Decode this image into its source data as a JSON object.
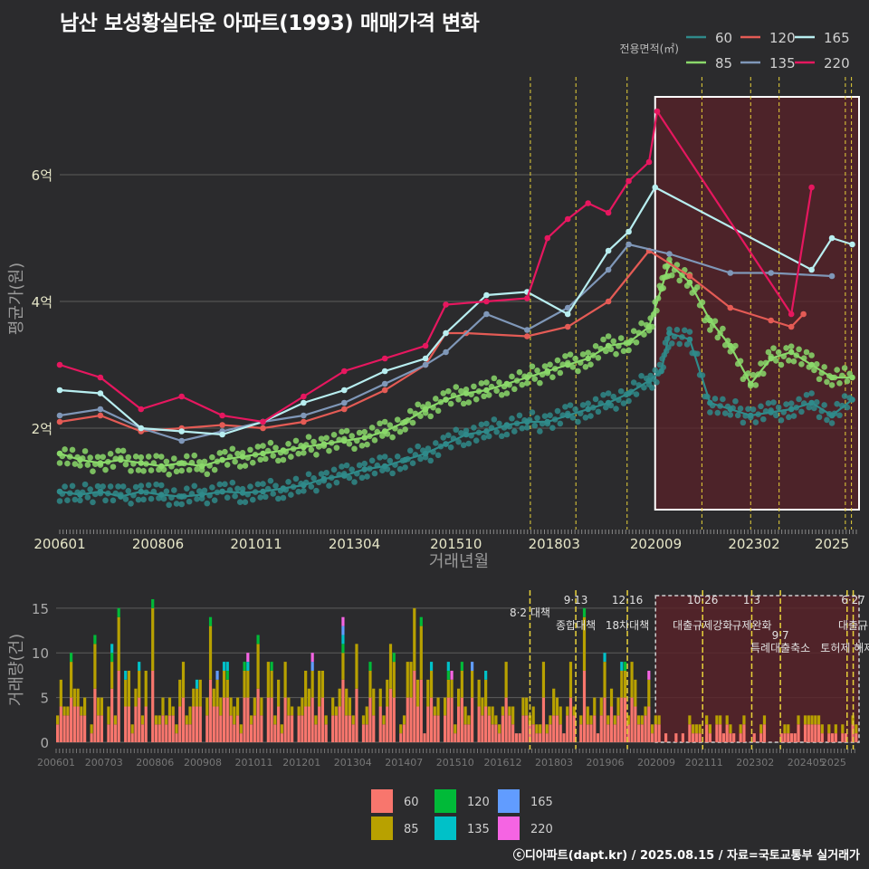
{
  "title": "남산 보성황실타운 아파트(1993) 매매가격 변화",
  "credit": "ⓒ디아파트(dapt.kr) / 2025.08.15 / 자료=국토교통부 실거래가",
  "colors": {
    "background": "#2b2b2d",
    "grid": "#5a5a5a",
    "highlight_fill": "#5a2228",
    "highlight_border": "#ffffff",
    "policy_line": "#e8d23a"
  },
  "chart_data": [
    {
      "type": "line",
      "title": "남산 보성황실타운 아파트(1993) 매매가격 변화",
      "xlabel": "거래년월",
      "ylabel": "평균가(원)",
      "x_ticks": [
        "200601",
        "200806",
        "201011",
        "201304",
        "201510",
        "201803",
        "202009",
        "202302",
        "2025"
      ],
      "y_ticks": [
        {
          "v": 2,
          "label": "2억"
        },
        {
          "v": 4,
          "label": "4억"
        },
        {
          "v": 6,
          "label": "6억"
        }
      ],
      "ylim": [
        0.5,
        7.4
      ],
      "xlim": [
        2006.0,
        2025.6
      ],
      "legend_title": "전용면적(㎡)",
      "legend_position": "top-right",
      "highlight_range": [
        2020.65,
        2025.6
      ],
      "policy_dates": [
        2017.58,
        2018.7,
        2019.96,
        2021.8,
        2023.0,
        2023.7,
        2025.33,
        2025.48
      ],
      "series": [
        {
          "name": "60",
          "color": "#2f8a8a",
          "values": [
            [
              2006.0,
              1.0
            ],
            [
              2006.5,
              0.95
            ],
            [
              2007.0,
              1.0
            ],
            [
              2007.5,
              0.92
            ],
            [
              2008.0,
              1.0
            ],
            [
              2008.5,
              0.95
            ],
            [
              2009.0,
              0.92
            ],
            [
              2009.5,
              0.95
            ],
            [
              2010.0,
              1.0
            ],
            [
              2010.5,
              0.98
            ],
            [
              2011.0,
              1.0
            ],
            [
              2011.5,
              1.05
            ],
            [
              2012.0,
              1.1
            ],
            [
              2012.5,
              1.2
            ],
            [
              2013.0,
              1.25
            ],
            [
              2013.5,
              1.35
            ],
            [
              2014.0,
              1.4
            ],
            [
              2014.5,
              1.5
            ],
            [
              2015.0,
              1.6
            ],
            [
              2015.5,
              1.75
            ],
            [
              2016.0,
              1.9
            ],
            [
              2016.5,
              1.95
            ],
            [
              2017.0,
              2.05
            ],
            [
              2017.5,
              2.1
            ],
            [
              2018.0,
              2.1
            ],
            [
              2018.5,
              2.2
            ],
            [
              2019.0,
              2.3
            ],
            [
              2019.5,
              2.4
            ],
            [
              2020.0,
              2.55
            ],
            [
              2020.5,
              2.75
            ],
            [
              2020.8,
              2.9
            ],
            [
              2021.0,
              3.5
            ],
            [
              2021.5,
              3.4
            ],
            [
              2022.0,
              2.4
            ],
            [
              2022.5,
              2.3
            ],
            [
              2023.0,
              2.2
            ],
            [
              2023.5,
              2.25
            ],
            [
              2024.0,
              2.3
            ],
            [
              2024.5,
              2.4
            ],
            [
              2025.0,
              2.2
            ],
            [
              2025.5,
              2.45
            ]
          ]
        },
        {
          "name": "85",
          "color": "#8ad86a",
          "values": [
            [
              2006.0,
              1.6
            ],
            [
              2006.5,
              1.5
            ],
            [
              2007.0,
              1.45
            ],
            [
              2007.5,
              1.5
            ],
            [
              2008.0,
              1.45
            ],
            [
              2008.5,
              1.4
            ],
            [
              2009.0,
              1.45
            ],
            [
              2009.5,
              1.4
            ],
            [
              2010.0,
              1.5
            ],
            [
              2010.5,
              1.55
            ],
            [
              2011.0,
              1.6
            ],
            [
              2011.5,
              1.65
            ],
            [
              2012.0,
              1.7
            ],
            [
              2012.5,
              1.75
            ],
            [
              2013.0,
              1.8
            ],
            [
              2013.5,
              1.85
            ],
            [
              2014.0,
              1.95
            ],
            [
              2014.5,
              2.1
            ],
            [
              2015.0,
              2.3
            ],
            [
              2015.5,
              2.45
            ],
            [
              2016.0,
              2.55
            ],
            [
              2016.5,
              2.6
            ],
            [
              2017.0,
              2.7
            ],
            [
              2017.5,
              2.8
            ],
            [
              2018.0,
              2.9
            ],
            [
              2018.5,
              3.0
            ],
            [
              2019.0,
              3.1
            ],
            [
              2019.5,
              3.3
            ],
            [
              2020.0,
              3.35
            ],
            [
              2020.5,
              3.6
            ],
            [
              2020.8,
              4.2
            ],
            [
              2021.0,
              4.6
            ],
            [
              2021.5,
              4.3
            ],
            [
              2022.0,
              3.7
            ],
            [
              2022.5,
              3.3
            ],
            [
              2023.0,
              2.7
            ],
            [
              2023.5,
              3.1
            ],
            [
              2024.0,
              3.2
            ],
            [
              2024.5,
              3.0
            ],
            [
              2025.0,
              2.8
            ],
            [
              2025.5,
              2.8
            ]
          ]
        },
        {
          "name": "120",
          "color": "#e45b55",
          "values": [
            [
              2006.0,
              2.1
            ],
            [
              2007.0,
              2.2
            ],
            [
              2008.0,
              1.95
            ],
            [
              2009.0,
              2.0
            ],
            [
              2010.0,
              2.05
            ],
            [
              2011.0,
              2.0
            ],
            [
              2012.0,
              2.1
            ],
            [
              2013.0,
              2.3
            ],
            [
              2014.0,
              2.6
            ],
            [
              2015.0,
              3.0
            ],
            [
              2015.5,
              3.5
            ],
            [
              2016.0,
              3.5
            ],
            [
              2017.5,
              3.45
            ],
            [
              2018.5,
              3.6
            ],
            [
              2019.5,
              4.0
            ],
            [
              2020.5,
              4.8
            ],
            [
              2021.5,
              4.4
            ],
            [
              2022.5,
              3.9
            ],
            [
              2023.5,
              3.7
            ],
            [
              2024.0,
              3.6
            ],
            [
              2024.3,
              3.8
            ]
          ]
        },
        {
          "name": "135",
          "color": "#7f97b8",
          "values": [
            [
              2006.0,
              2.2
            ],
            [
              2007.0,
              2.3
            ],
            [
              2008.0,
              2.0
            ],
            [
              2009.0,
              1.8
            ],
            [
              2010.0,
              1.95
            ],
            [
              2011.0,
              2.1
            ],
            [
              2012.0,
              2.2
            ],
            [
              2013.0,
              2.4
            ],
            [
              2014.0,
              2.7
            ],
            [
              2015.0,
              3.0
            ],
            [
              2015.5,
              3.2
            ],
            [
              2016.5,
              3.8
            ],
            [
              2017.5,
              3.55
            ],
            [
              2018.5,
              3.9
            ],
            [
              2019.5,
              4.5
            ],
            [
              2020.0,
              4.9
            ],
            [
              2021.0,
              4.75
            ],
            [
              2022.5,
              4.45
            ],
            [
              2023.5,
              4.45
            ],
            [
              2025.0,
              4.4
            ]
          ]
        },
        {
          "name": "165",
          "color": "#b8eef0",
          "values": [
            [
              2006.0,
              2.6
            ],
            [
              2007.0,
              2.55
            ],
            [
              2008.0,
              2.0
            ],
            [
              2009.0,
              1.95
            ],
            [
              2010.0,
              1.9
            ],
            [
              2011.0,
              2.1
            ],
            [
              2012.0,
              2.4
            ],
            [
              2013.0,
              2.6
            ],
            [
              2014.0,
              2.9
            ],
            [
              2015.0,
              3.1
            ],
            [
              2015.5,
              3.5
            ],
            [
              2016.5,
              4.1
            ],
            [
              2017.5,
              4.15
            ],
            [
              2018.5,
              3.8
            ],
            [
              2019.5,
              4.8
            ],
            [
              2020.0,
              5.1
            ],
            [
              2020.65,
              5.8
            ],
            [
              2024.5,
              4.5
            ],
            [
              2025.0,
              5.0
            ],
            [
              2025.5,
              4.9
            ]
          ]
        },
        {
          "name": "220",
          "color": "#e6175f",
          "values": [
            [
              2006.0,
              3.0
            ],
            [
              2007.0,
              2.8
            ],
            [
              2008.0,
              2.3
            ],
            [
              2009.0,
              2.5
            ],
            [
              2010.0,
              2.2
            ],
            [
              2011.0,
              2.1
            ],
            [
              2012.0,
              2.5
            ],
            [
              2013.0,
              2.9
            ],
            [
              2014.0,
              3.1
            ],
            [
              2015.0,
              3.3
            ],
            [
              2015.5,
              3.95
            ],
            [
              2016.5,
              4.0
            ],
            [
              2017.5,
              4.05
            ],
            [
              2018.0,
              5.0
            ],
            [
              2018.5,
              5.3
            ],
            [
              2019.0,
              5.55
            ],
            [
              2019.5,
              5.4
            ],
            [
              2020.0,
              5.9
            ],
            [
              2020.5,
              6.2
            ],
            [
              2020.7,
              7.0
            ],
            [
              2024.0,
              3.8
            ],
            [
              2024.5,
              5.8
            ]
          ]
        }
      ]
    },
    {
      "type": "bar",
      "ylabel": "거래량(건)",
      "y_ticks": [
        0,
        5,
        10,
        15
      ],
      "ylim": [
        0,
        16.5
      ],
      "x_ticks": [
        "200601",
        "200703",
        "200806",
        "200908",
        "201011",
        "201201",
        "201304",
        "201407",
        "201510",
        "201612",
        "201803",
        "201906",
        "202009",
        "202111",
        "202302",
        "202405",
        "2025"
      ],
      "stack_colors": {
        "60": "#f8766d",
        "85": "#b8a100",
        "120": "#00ba38",
        "135": "#00c1c8",
        "165": "#619cff",
        "220": "#f564e3"
      },
      "legend": [
        "60",
        "85",
        "120",
        "135",
        "165",
        "220"
      ],
      "policies": [
        {
          "x": 2017.58,
          "label": "8·2 대책",
          "row": 0
        },
        {
          "x": 2018.7,
          "label": "9·13",
          "row": -1
        },
        {
          "x": 2018.7,
          "label": "종합대책",
          "row": 1
        },
        {
          "x": 2019.96,
          "label": "12·16",
          "row": -1
        },
        {
          "x": 2019.96,
          "label": "18차대책",
          "row": 1
        },
        {
          "x": 2021.8,
          "label": "10·26",
          "row": -1
        },
        {
          "x": 2021.8,
          "label": "대출규제강화",
          "row": 1
        },
        {
          "x": 2023.0,
          "label": "1·3",
          "row": -1
        },
        {
          "x": 2023.0,
          "label": "규제완화",
          "row": 1
        },
        {
          "x": 2023.7,
          "label": "9·7",
          "row": 1.8
        },
        {
          "x": 2023.7,
          "label": "특례대출축소",
          "row": 2.8
        },
        {
          "x": 2025.33,
          "label": "토허제 해제",
          "row": 2.8
        },
        {
          "x": 2025.48,
          "label": "6·27",
          "row": -1
        },
        {
          "x": 2025.48,
          "label": "대출규",
          "row": 1
        }
      ]
    }
  ]
}
